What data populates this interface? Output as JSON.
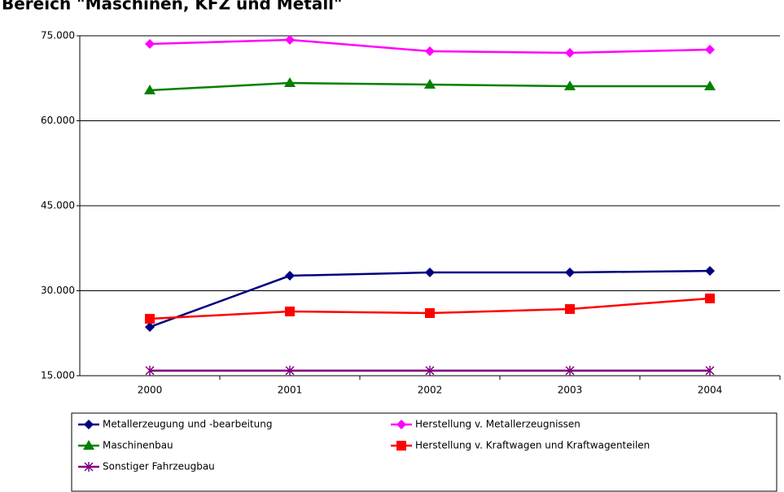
{
  "chart_data": {
    "type": "line",
    "title": "Bereich \"Maschinen, KFZ und Metall\"",
    "categories": [
      "2000",
      "2001",
      "2002",
      "2003",
      "2004"
    ],
    "series": [
      {
        "name": "Metallerzeugung und -bearbeitung",
        "color": "#000080",
        "marker": "diamond",
        "values": [
          23600,
          32650,
          33230,
          33230,
          33500
        ]
      },
      {
        "name": "Herstellung v. Metallerzeugnissen",
        "color": "#ff00ff",
        "marker": "diamond",
        "values": [
          73560,
          74280,
          72270,
          71990,
          72560
        ]
      },
      {
        "name": "Maschinenbau",
        "color": "#008000",
        "marker": "triangle",
        "values": [
          65380,
          66670,
          66390,
          66100,
          66100
        ]
      },
      {
        "name": "Herstellung v. Kraftwagen und Kraftwagenteilen",
        "color": "#ff0000",
        "marker": "square",
        "values": [
          25050,
          26340,
          26050,
          26770,
          28640
        ]
      },
      {
        "name": "Sonstiger Fahrzeugbau",
        "color": "#800080",
        "marker": "star",
        "values": [
          15900,
          15900,
          15900,
          15900,
          15900
        ]
      }
    ],
    "ylim": [
      15000,
      75000
    ],
    "yticks": [
      {
        "value": 15000,
        "label": "15.000"
      },
      {
        "value": 30000,
        "label": "30.000"
      },
      {
        "value": 45000,
        "label": "45.000"
      },
      {
        "value": 60000,
        "label": "60.000"
      },
      {
        "value": 75000,
        "label": "75.000"
      }
    ],
    "grid": true,
    "legend": "bottom"
  }
}
